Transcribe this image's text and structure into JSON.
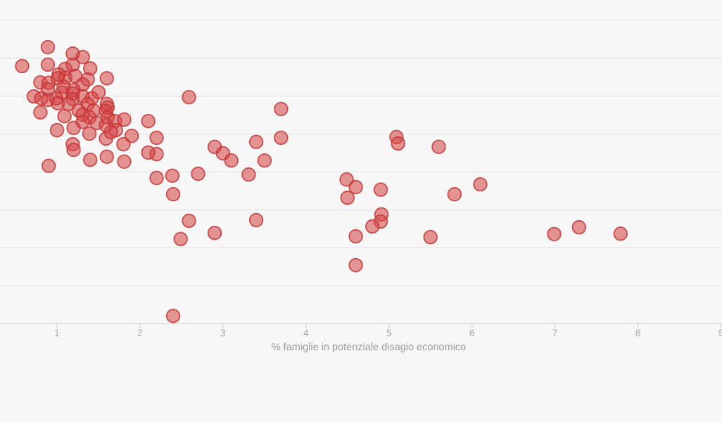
{
  "chart": {
    "background_color": "#f7f7f7",
    "gridline_color": "#e0e0e0",
    "axis_line_color": "#cccccc",
    "tick_mark_color": "#c8c8c8",
    "tick_text_color": "#a9a9a9",
    "axis_title_color": "#9a9a9a",
    "point_fill_color": "#d64242",
    "point_stroke_color": "#c23636"
  },
  "chart_data": {
    "type": "scatter",
    "title": "",
    "xlabel": "% famiglie in potenziale disagio economico",
    "ylabel": "",
    "legend": "none",
    "grid": "horizontal gridlines only",
    "x_ticks": [
      1,
      2,
      3,
      4,
      5,
      6,
      7,
      8,
      9
    ],
    "xlim": [
      0.31,
      9.01
    ],
    "y_axis_note": "y-axis labels not visible in crop; y values expressed in horizontal-gridline units above the baseline (0 = x-axis, 1 per gridline, 8 gridlines visible)",
    "ylim": [
      0,
      8.53
    ],
    "y_gridlines": [
      1,
      2,
      3,
      4,
      5,
      6,
      7,
      8
    ],
    "series_name": "data-points",
    "points": [
      [
        0.89,
        7.29
      ],
      [
        1.19,
        7.12
      ],
      [
        1.31,
        7.03
      ],
      [
        0.58,
        6.79
      ],
      [
        0.89,
        6.83
      ],
      [
        1.1,
        6.72
      ],
      [
        1.19,
        6.83
      ],
      [
        1.4,
        6.73
      ],
      [
        1.02,
        6.57
      ],
      [
        1.1,
        6.49
      ],
      [
        1.22,
        6.53
      ],
      [
        1.37,
        6.44
      ],
      [
        1.6,
        6.47
      ],
      [
        0.8,
        6.36
      ],
      [
        0.9,
        6.35
      ],
      [
        1.01,
        6.47
      ],
      [
        1.31,
        6.31
      ],
      [
        1.08,
        6.25
      ],
      [
        1.2,
        6.16
      ],
      [
        0.89,
        6.18
      ],
      [
        1.06,
        6.09
      ],
      [
        1.5,
        6.1
      ],
      [
        0.72,
        5.99
      ],
      [
        0.81,
        5.94
      ],
      [
        0.89,
        5.9
      ],
      [
        0.99,
        5.94
      ],
      [
        1.19,
        6.07
      ],
      [
        1.19,
        5.92
      ],
      [
        1.31,
        5.99
      ],
      [
        1.42,
        5.94
      ],
      [
        1.37,
        5.79
      ],
      [
        1.6,
        5.79
      ],
      [
        1.14,
        5.79
      ],
      [
        1.01,
        5.81
      ],
      [
        1.26,
        5.62
      ],
      [
        1.44,
        5.62
      ],
      [
        1.61,
        5.7
      ],
      [
        1.59,
        5.6
      ],
      [
        0.8,
        5.57
      ],
      [
        1.09,
        5.47
      ],
      [
        1.31,
        5.51
      ],
      [
        1.39,
        5.44
      ],
      [
        1.48,
        5.29
      ],
      [
        1.59,
        5.23
      ],
      [
        1.61,
        5.44
      ],
      [
        1.7,
        5.34
      ],
      [
        1.71,
        5.1
      ],
      [
        1.81,
        5.38
      ],
      [
        1.0,
        5.1
      ],
      [
        1.2,
        5.16
      ],
      [
        1.31,
        5.32
      ],
      [
        1.39,
        5.01
      ],
      [
        1.59,
        4.88
      ],
      [
        1.65,
        5.05
      ],
      [
        1.9,
        4.95
      ],
      [
        1.19,
        4.73
      ],
      [
        1.2,
        4.58
      ],
      [
        1.8,
        4.73
      ],
      [
        1.4,
        4.32
      ],
      [
        1.6,
        4.4
      ],
      [
        1.81,
        4.27
      ],
      [
        0.9,
        4.16
      ],
      [
        2.1,
        5.34
      ],
      [
        2.2,
        4.9
      ],
      [
        2.2,
        4.47
      ],
      [
        2.1,
        4.51
      ],
      [
        2.59,
        5.97
      ],
      [
        3.7,
        5.66
      ],
      [
        2.9,
        4.66
      ],
      [
        3.0,
        4.49
      ],
      [
        3.1,
        4.3
      ],
      [
        3.4,
        4.79
      ],
      [
        3.7,
        4.9
      ],
      [
        3.5,
        4.3
      ],
      [
        2.2,
        3.84
      ],
      [
        2.39,
        3.9
      ],
      [
        2.7,
        3.95
      ],
      [
        3.31,
        3.93
      ],
      [
        2.4,
        3.41
      ],
      [
        5.09,
        4.92
      ],
      [
        5.11,
        4.75
      ],
      [
        5.6,
        4.66
      ],
      [
        4.49,
        3.8
      ],
      [
        4.6,
        3.6
      ],
      [
        4.9,
        3.53
      ],
      [
        4.5,
        3.32
      ],
      [
        5.79,
        3.41
      ],
      [
        6.1,
        3.67
      ],
      [
        4.91,
        2.88
      ],
      [
        4.9,
        2.69
      ],
      [
        4.8,
        2.56
      ],
      [
        4.6,
        2.3
      ],
      [
        5.5,
        2.28
      ],
      [
        2.59,
        2.71
      ],
      [
        2.49,
        2.23
      ],
      [
        2.9,
        2.39
      ],
      [
        3.4,
        2.73
      ],
      [
        4.6,
        1.54
      ],
      [
        6.99,
        2.36
      ],
      [
        7.29,
        2.54
      ],
      [
        7.79,
        2.37
      ],
      [
        2.4,
        0.2
      ]
    ]
  }
}
